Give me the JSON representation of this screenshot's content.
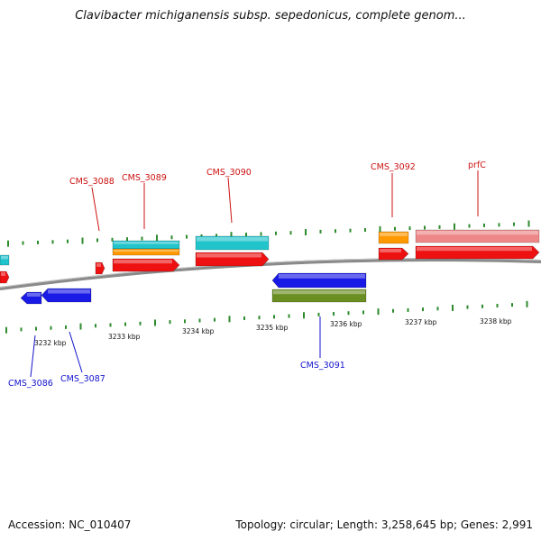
{
  "title": "Clavibacter michiganensis subsp. sepedonicus, complete genom...",
  "footer": {
    "accession": "Accession: NC_010407",
    "summary": "Topology: circular; Length: 3,258,645 bp; Genes: 2,991"
  },
  "colors": {
    "backbone": "#8a8a8a",
    "tick": "#2e8b2e",
    "forward_label": "#cc1111",
    "reverse_label": "#1111cc",
    "cds": "#ee1111",
    "gene_cyan": "#22c4cc",
    "gene_orange": "#ff9900",
    "gene_pink": "#ee8888",
    "gene_blue": "#1a1ae6",
    "gene_olive": "#6b8e23"
  },
  "tick_labels": [
    "3232 kbp",
    "3233 kbp",
    "3234 kbp",
    "3235 kbp",
    "3236 kbp",
    "3237 kbp",
    "3238 kbp"
  ],
  "gene_labels": {
    "forward": [
      "CMS_3088",
      "CMS_3089",
      "CMS_3090",
      "CMS_3092",
      "prfC"
    ],
    "reverse": [
      "CMS_3086",
      "CMS_3087",
      "CMS_3091"
    ]
  }
}
